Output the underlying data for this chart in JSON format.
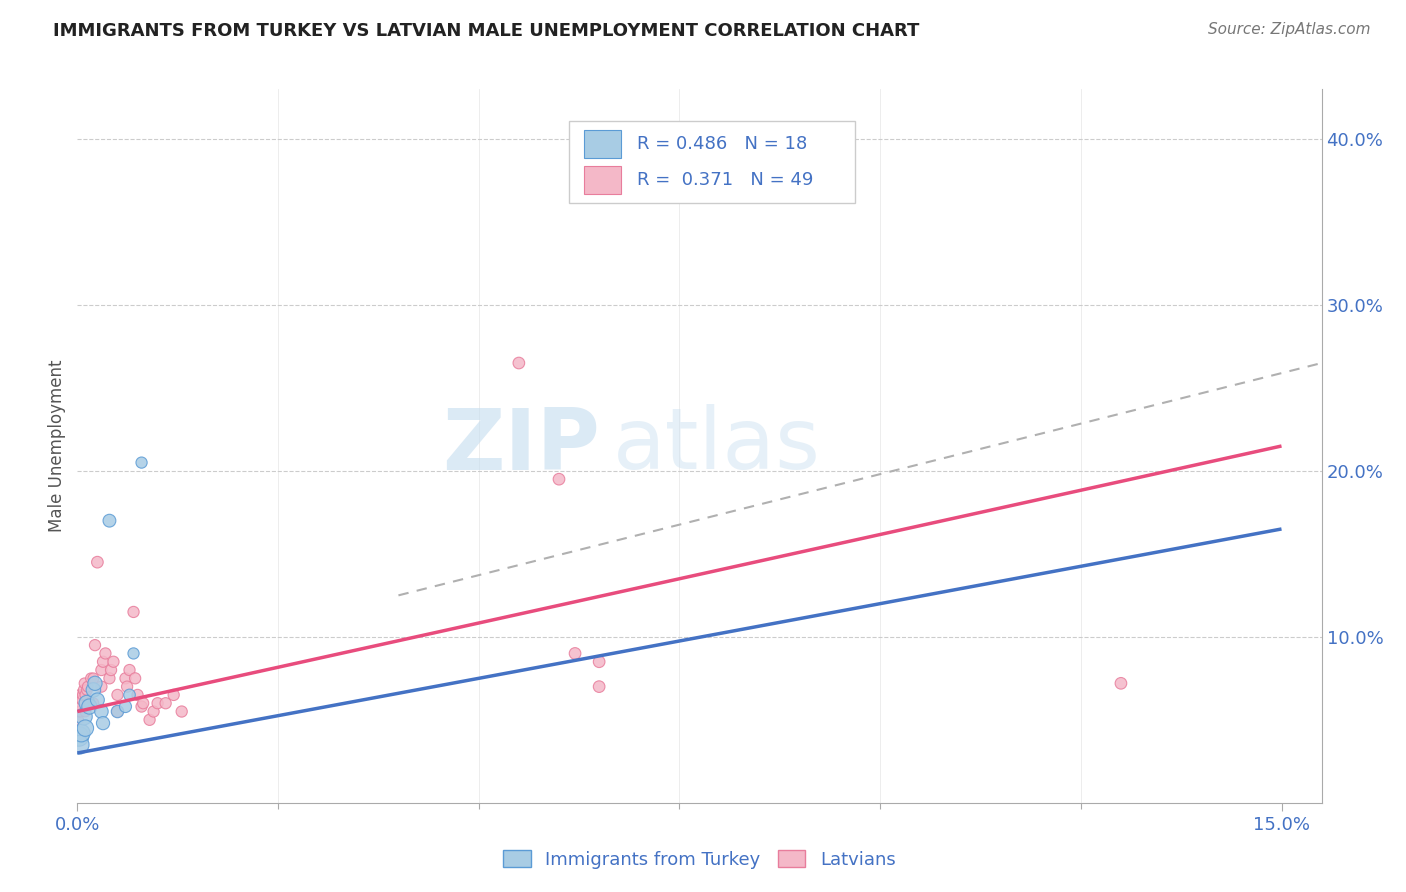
{
  "title": "IMMIGRANTS FROM TURKEY VS LATVIAN MALE UNEMPLOYMENT CORRELATION CHART",
  "source": "Source: ZipAtlas.com",
  "ylabel": "Male Unemployment",
  "xlim": [
    0.0,
    0.155
  ],
  "ylim": [
    0.0,
    0.43
  ],
  "yticks_right": [
    0.1,
    0.2,
    0.3,
    0.4
  ],
  "ytick_labels_right": [
    "10.0%",
    "20.0%",
    "30.0%",
    "40.0%"
  ],
  "xticks": [
    0.0,
    0.15
  ],
  "xtick_labels": [
    "0.0%",
    "15.0%"
  ],
  "legend_r1": "R = 0.486",
  "legend_n1": "N = 18",
  "legend_r2": "R =  0.371",
  "legend_n2": "N = 49",
  "color_blue": "#a8cce4",
  "color_blue_dark": "#5b9bd5",
  "color_blue_line": "#4472c4",
  "color_pink": "#f4b8c8",
  "color_pink_dark": "#e87d9c",
  "color_pink_line": "#e84c7d",
  "color_dashed": "#b0b0b0",
  "watermark_zip": "ZIP",
  "watermark_atlas": "atlas",
  "blue_scatter_x": [
    0.0002,
    0.0003,
    0.0005,
    0.0008,
    0.001,
    0.0012,
    0.0015,
    0.002,
    0.0022,
    0.0025,
    0.003,
    0.0032,
    0.004,
    0.005,
    0.006,
    0.0065,
    0.007,
    0.008
  ],
  "blue_scatter_y": [
    0.04,
    0.035,
    0.042,
    0.052,
    0.045,
    0.06,
    0.058,
    0.068,
    0.072,
    0.062,
    0.055,
    0.048,
    0.17,
    0.055,
    0.058,
    0.065,
    0.09,
    0.205
  ],
  "blue_scatter_size": [
    200,
    180,
    160,
    150,
    140,
    130,
    120,
    110,
    105,
    100,
    95,
    90,
    85,
    80,
    75,
    70,
    65,
    65
  ],
  "pink_scatter_x": [
    0.0001,
    0.0002,
    0.0003,
    0.0003,
    0.0004,
    0.0005,
    0.0006,
    0.0007,
    0.0008,
    0.0009,
    0.001,
    0.001,
    0.0012,
    0.0013,
    0.0015,
    0.0017,
    0.002,
    0.002,
    0.0022,
    0.0025,
    0.003,
    0.003,
    0.0032,
    0.0035,
    0.004,
    0.0042,
    0.0045,
    0.005,
    0.005,
    0.006,
    0.0062,
    0.0065,
    0.007,
    0.0072,
    0.0075,
    0.008,
    0.0082,
    0.009,
    0.0095,
    0.01,
    0.011,
    0.012,
    0.013,
    0.055,
    0.06,
    0.062,
    0.065,
    0.065,
    0.13
  ],
  "pink_scatter_y": [
    0.05,
    0.055,
    0.055,
    0.065,
    0.055,
    0.058,
    0.062,
    0.065,
    0.068,
    0.072,
    0.055,
    0.065,
    0.068,
    0.07,
    0.06,
    0.075,
    0.06,
    0.075,
    0.095,
    0.145,
    0.07,
    0.08,
    0.085,
    0.09,
    0.075,
    0.08,
    0.085,
    0.055,
    0.065,
    0.075,
    0.07,
    0.08,
    0.115,
    0.075,
    0.065,
    0.058,
    0.06,
    0.05,
    0.055,
    0.06,
    0.06,
    0.065,
    0.055,
    0.265,
    0.195,
    0.09,
    0.085,
    0.07,
    0.072
  ],
  "pink_scatter_size": [
    60,
    60,
    60,
    60,
    60,
    60,
    60,
    60,
    60,
    60,
    60,
    60,
    60,
    60,
    60,
    60,
    60,
    60,
    65,
    70,
    65,
    65,
    65,
    65,
    65,
    65,
    65,
    65,
    65,
    65,
    65,
    65,
    65,
    65,
    65,
    65,
    65,
    65,
    65,
    65,
    65,
    65,
    65,
    70,
    70,
    70,
    70,
    70,
    70
  ],
  "blue_line_x": [
    0.0,
    0.15
  ],
  "blue_line_y": [
    0.03,
    0.165
  ],
  "pink_line_x": [
    0.0,
    0.15
  ],
  "pink_line_y": [
    0.055,
    0.215
  ],
  "dashed_line_x": [
    0.04,
    0.155
  ],
  "dashed_line_y": [
    0.125,
    0.265
  ]
}
